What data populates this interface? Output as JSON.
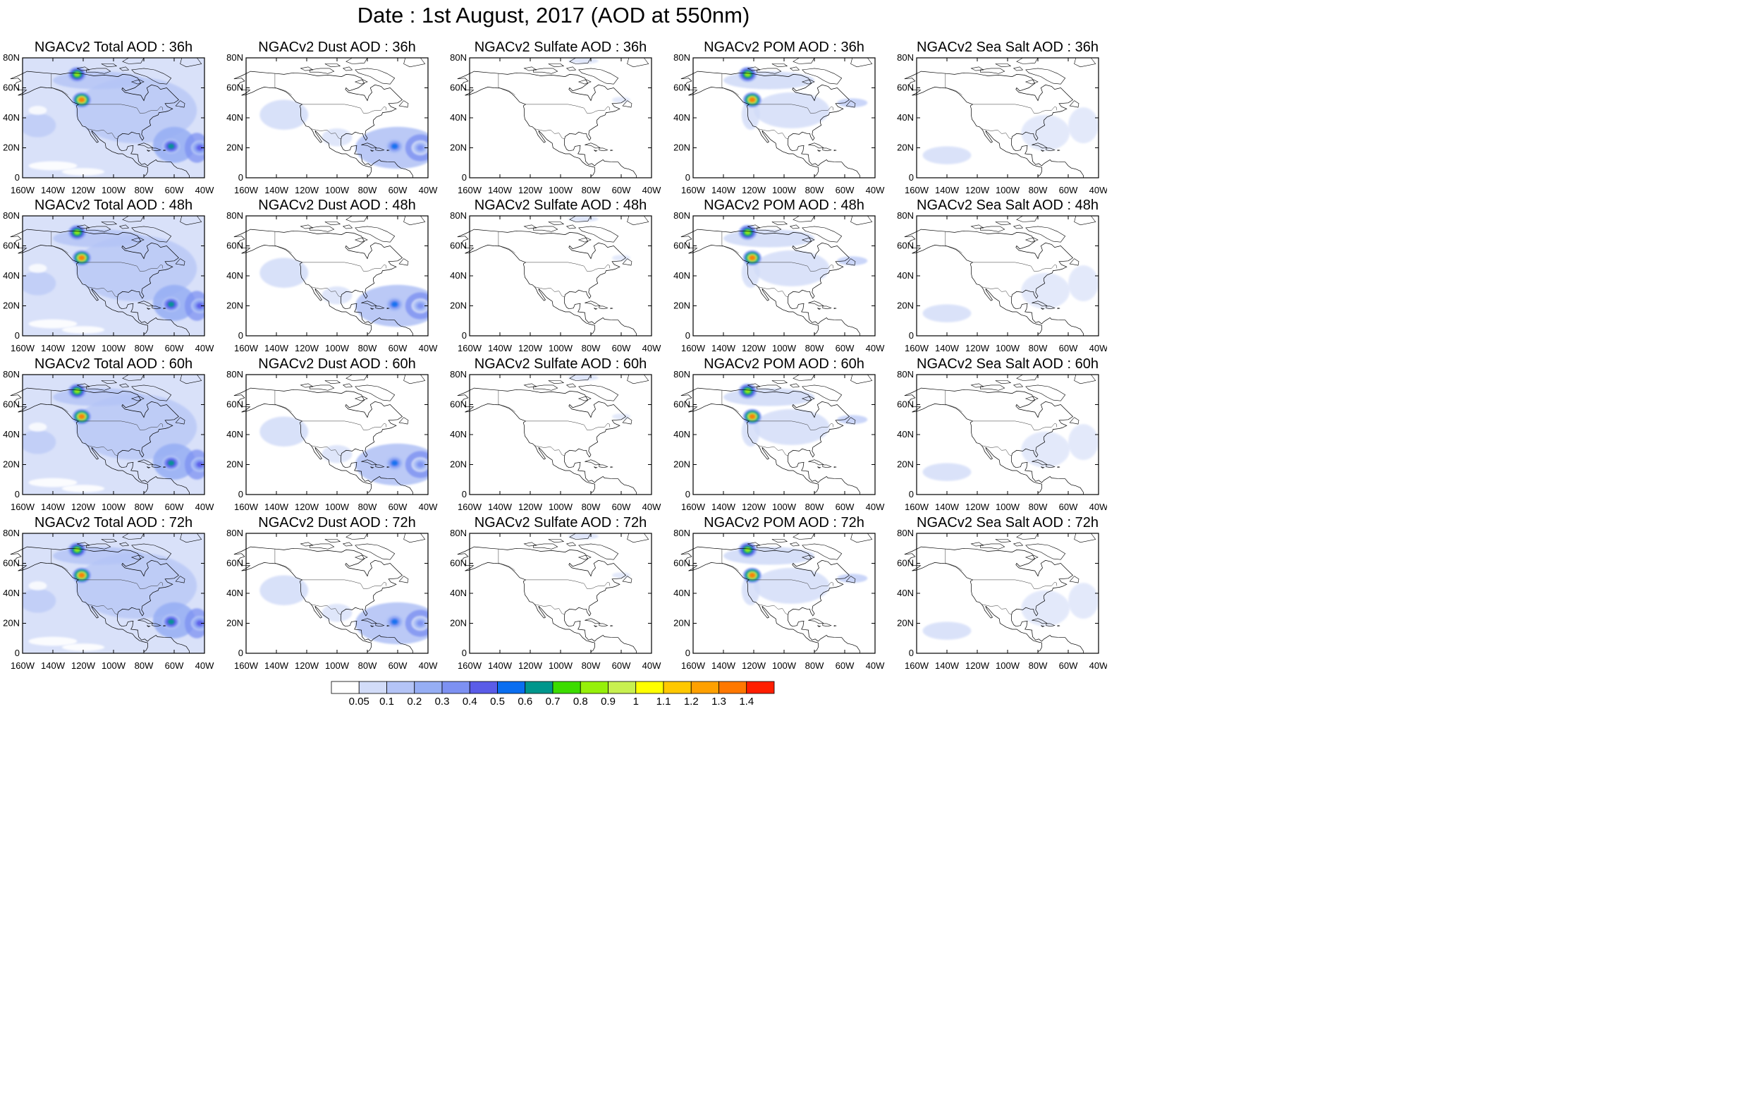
{
  "title": "Date : 1st August, 2017 (AOD at 550nm)",
  "x_ticks": [
    "160W",
    "140W",
    "120W",
    "100W",
    "80W",
    "60W",
    "40W"
  ],
  "y_ticks": [
    "80N",
    "60N",
    "40N",
    "20N",
    "0"
  ],
  "panel_titles": [
    [
      "NGACv2 Total AOD : 36h",
      "NGACv2 Dust AOD : 36h",
      "NGACv2 Sulfate AOD : 36h",
      "NGACv2 POM AOD : 36h",
      "NGACv2 Sea Salt AOD : 36h"
    ],
    [
      "NGACv2 Total AOD : 48h",
      "NGACv2 Dust AOD : 48h",
      "NGACv2 Sulfate AOD : 48h",
      "NGACv2 POM AOD : 48h",
      "NGACv2 Sea Salt AOD : 48h"
    ],
    [
      "NGACv2 Total AOD : 60h",
      "NGACv2 Dust AOD : 60h",
      "NGACv2 Sulfate AOD : 60h",
      "NGACv2 POM AOD : 60h",
      "NGACv2 Sea Salt AOD : 60h"
    ],
    [
      "NGACv2 Total AOD : 72h",
      "NGACv2 Dust AOD : 72h",
      "NGACv2 Sulfate AOD : 72h",
      "NGACv2 POM AOD : 72h",
      "NGACv2 Sea Salt  AOD : 72h"
    ]
  ],
  "colorbar": {
    "labels": [
      "0.05",
      "0.1",
      "0.2",
      "0.3",
      "0.4",
      "0.5",
      "0.6",
      "0.7",
      "0.8",
      "0.9",
      "1",
      "1.1",
      "1.2",
      "1.3",
      "1.4"
    ],
    "colors": [
      "#ffffff",
      "#d2dcf8",
      "#b4c4f6",
      "#96aef4",
      "#7d91f2",
      "#5a5ce8",
      "#0a6ef0",
      "#00968c",
      "#3cdc00",
      "#96f00a",
      "#c8f050",
      "#ffff00",
      "#ffc800",
      "#ffa000",
      "#ff7800",
      "#ff1e00"
    ]
  },
  "map": {
    "projection": "cylindrical equidistant",
    "lon_range": [
      -160,
      -40
    ],
    "lat_range": [
      0,
      80
    ],
    "plumes": {
      "total": [
        {
          "lon": -62,
          "lat": 21,
          "level": 0.6
        },
        {
          "lon": -43,
          "lat": 20,
          "level": 0.4
        },
        {
          "lon": -121,
          "lat": 52,
          "level": 1.3
        },
        {
          "lon": -124,
          "lat": 69,
          "level": 0.8
        }
      ],
      "dust": [
        {
          "lon": -62,
          "lat": 21,
          "level": 0.5
        },
        {
          "lon": -45,
          "lat": 20,
          "level": 0.35
        }
      ],
      "pom": [
        {
          "lon": -121,
          "lat": 52,
          "level": 1.3
        },
        {
          "lon": -124,
          "lat": 69,
          "level": 0.8
        }
      ]
    }
  }
}
